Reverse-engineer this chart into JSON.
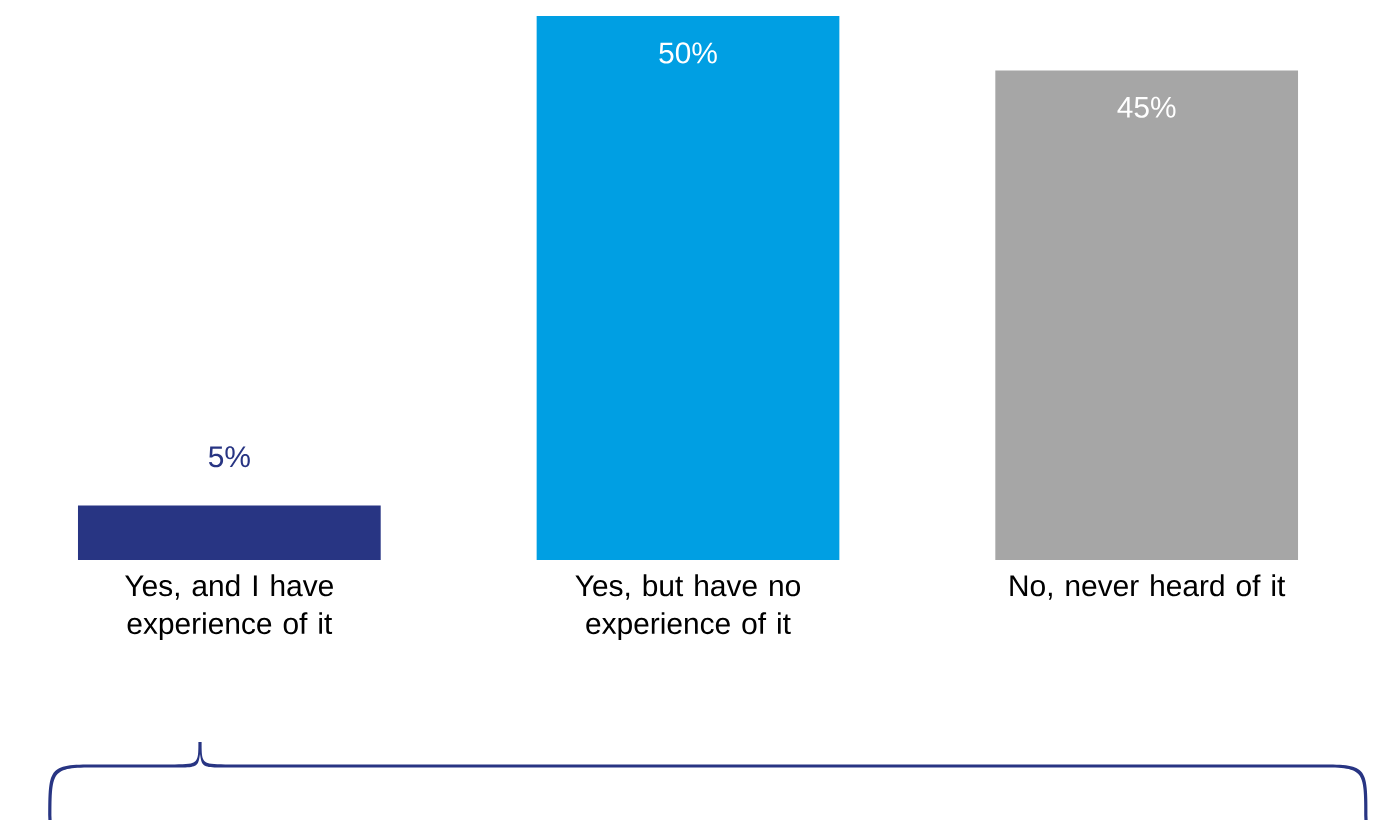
{
  "chart_data": {
    "type": "bar",
    "categories": [
      "Yes, and I have experience of it",
      "Yes, but have no experience of it",
      "No, never heard of it"
    ],
    "values": [
      5,
      50,
      45
    ],
    "colors": [
      "#283583",
      "#009fe3",
      "#a6a6a6"
    ],
    "value_labels": [
      "5%",
      "50%",
      "45%"
    ]
  }
}
